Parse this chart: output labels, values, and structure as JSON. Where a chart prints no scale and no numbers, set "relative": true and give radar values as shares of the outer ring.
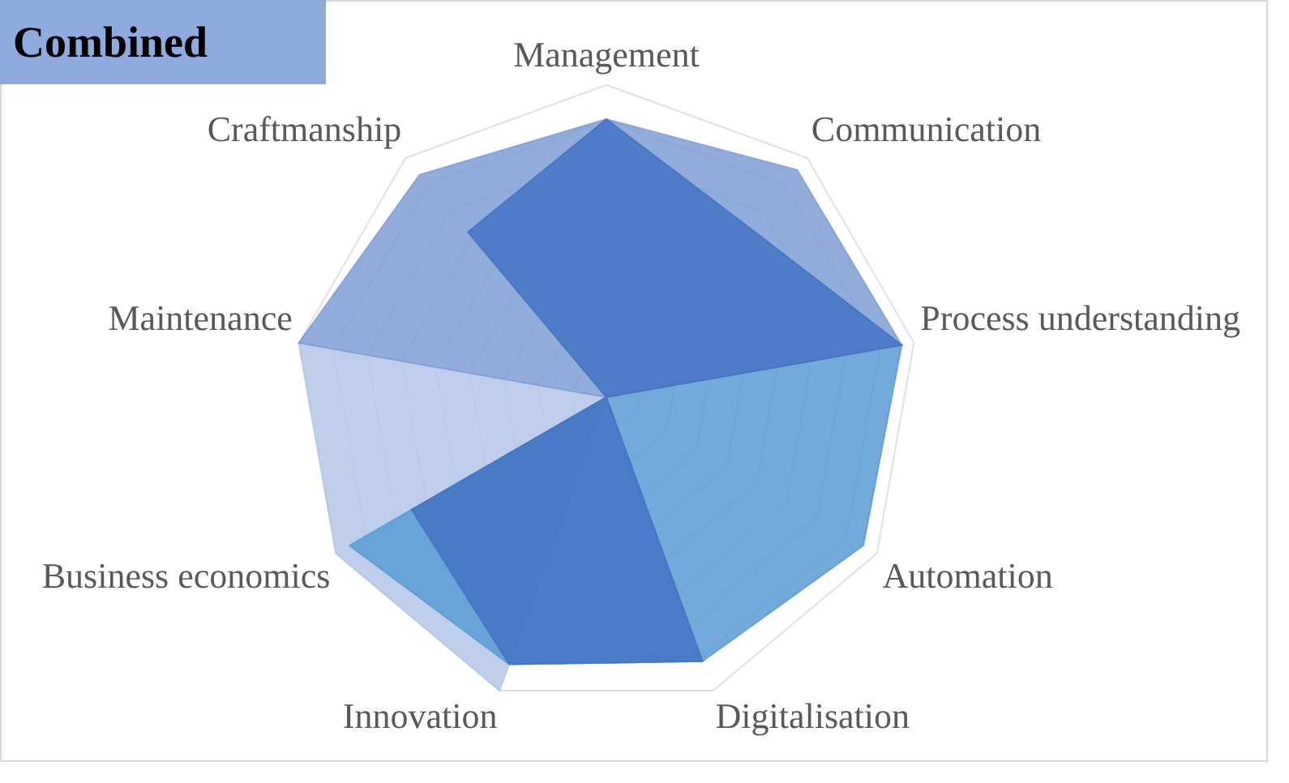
{
  "chart_data": {
    "type": "radar",
    "title": "Combined",
    "relative": true,
    "grid": true,
    "legend": false,
    "categories": [
      "Management",
      "Communication",
      "Process understanding",
      "Automation",
      "Digitalisation",
      "Innovation",
      "Business economics",
      "Maintenance",
      "Craftmanship"
    ],
    "series": [
      {
        "color": "#b4c7e7",
        "values": [
          0,
          0,
          0,
          0,
          0,
          1,
          1,
          1,
          0
        ]
      },
      {
        "color": "#5b9bd5",
        "values": [
          0,
          0,
          0.96,
          0.95,
          0.9,
          0.91,
          0.95,
          0,
          0
        ]
      },
      {
        "color": "#7f9fd6",
        "values": [
          0.89,
          0.95,
          0.96,
          0,
          0,
          0,
          0,
          1,
          0.93
        ]
      },
      {
        "color": "#4472c4",
        "values": [
          0.89,
          0.71,
          0.96,
          0,
          0.9,
          0.91,
          0.72,
          0,
          0.69
        ]
      }
    ]
  }
}
